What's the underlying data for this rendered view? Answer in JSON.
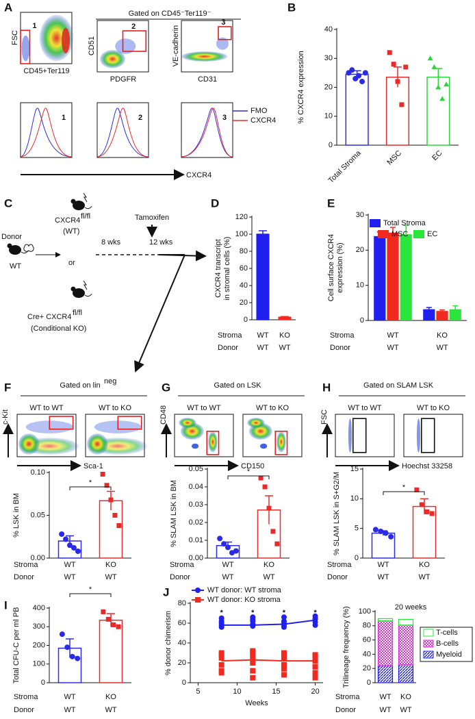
{
  "panel_a": {
    "letter": "A",
    "header": "Gated on CD45⁻Ter119⁻",
    "plots": [
      {
        "x_label": "CD45+Ter119",
        "y_label": "FSC",
        "gate": "1"
      },
      {
        "x_label": "PDGFR",
        "y_label": "CD51",
        "gate": "2"
      },
      {
        "x_label": "CD31",
        "y_label": "VE-cadherin",
        "gate": "3"
      }
    ],
    "histograms": [
      "1",
      "2",
      "3"
    ],
    "legend": [
      {
        "name": "FMO",
        "color": "#2b2be6"
      },
      {
        "name": "CXCR4",
        "color": "#e62b2b"
      }
    ],
    "x_arrow_label": "CXCR4"
  },
  "panel_c": {
    "letter": "C",
    "donor": "Donor",
    "donor_genotype": "WT",
    "wt_mouse": "CXCR4",
    "wt_sup": "fl/fl",
    "wt_note": "(WT)",
    "or": "or",
    "ko_mouse": "Cre+ CXCR4",
    "ko_sup": "fl/fl",
    "ko_note": "(Conditional KO)",
    "treatment": "Tamoxifen",
    "time1": "8 wks",
    "time2": "12 wks"
  },
  "flow_panels": [
    {
      "letter": "F",
      "header": "Gated on lin",
      "header_sup": "neg",
      "plots": [
        "WT to WT",
        "WT to KO"
      ],
      "x_label": "Sca-1",
      "y_label": "c-Kit"
    },
    {
      "letter": "G",
      "header": "Gated on LSK",
      "plots": [
        "WT to WT",
        "WT to KO"
      ],
      "x_label": "CD150",
      "y_label": "CD48"
    },
    {
      "letter": "H",
      "header": "Gated on SLAM LSK",
      "plots": [
        "WT to WT",
        "WT to KO"
      ],
      "x_label": "Hoechst 33258",
      "y_label": "FSC"
    }
  ],
  "chart_data": [
    {
      "type": "bar",
      "panel": "B",
      "ylabel": [
        "% CXCR4 expression"
      ],
      "categories": [
        "Total Stroma",
        "MSC",
        "EC"
      ],
      "values": [
        24.5,
        23.5,
        23.5
      ],
      "errors": [
        1.2,
        3.5,
        3.0
      ],
      "colors": [
        "#2b2be6",
        "#e62b2b",
        "#2bd63a"
      ],
      "filled": false,
      "points": [
        [
          25,
          26,
          23,
          24,
          22,
          25
        ],
        [
          32,
          28,
          22,
          14,
          27
        ],
        [
          30,
          27,
          20,
          16,
          21
        ]
      ],
      "ylim": [
        0,
        40
      ],
      "yticks": [
        0,
        10,
        20,
        30,
        40
      ]
    },
    {
      "type": "bar",
      "panel": "D",
      "ylabel": [
        "CXCR4 transcript",
        "in stromal cells (%)"
      ],
      "values": [
        100,
        3
      ],
      "errors": [
        4,
        0.8
      ],
      "colors": [
        "#1f1ff0",
        "#f02a1f"
      ],
      "filled": true,
      "rows": [
        {
          "label": "Stroma",
          "values": [
            "WT",
            "KO"
          ]
        },
        {
          "label": "Donor",
          "values": [
            "WT",
            "WT"
          ]
        }
      ],
      "ylim": [
        0,
        120
      ],
      "yticks": [
        0,
        20,
        40,
        60,
        80,
        100,
        120
      ]
    },
    {
      "type": "grouped-bar",
      "panel": "E",
      "ylabel": [
        "Cell surface CXCR4",
        "expression (%)"
      ],
      "series": [
        {
          "name": "Total Stroma",
          "color": "#1f1ff0",
          "values": [
            24,
            3.2
          ],
          "errors": [
            1.2,
            0.5
          ]
        },
        {
          "name": "MSC",
          "color": "#f02a1f",
          "values": [
            25,
            2.7
          ],
          "errors": [
            1.5,
            0.3
          ]
        },
        {
          "name": "EC",
          "color": "#2be63a",
          "values": [
            24.5,
            3.2
          ],
          "errors": [
            2.5,
            1.0
          ]
        }
      ],
      "rows": [
        {
          "label": "Stroma",
          "values": [
            "WT",
            "KO"
          ]
        },
        {
          "label": "Donor",
          "values": [
            "WT",
            "WT"
          ]
        }
      ],
      "ylim": [
        0,
        30
      ],
      "yticks": [
        0,
        10,
        20,
        30
      ]
    },
    {
      "type": "bar",
      "ylabel": [
        "% LSK in BM"
      ],
      "values": [
        0.02,
        0.067
      ],
      "errors": [
        0.006,
        0.011
      ],
      "colors": [
        "#2b2be6",
        "#e62b2b"
      ],
      "filled": false,
      "significance": "*",
      "points": [
        [
          0.028,
          0.022,
          0.015,
          0.012,
          0.008
        ],
        [
          0.098,
          0.085,
          0.068,
          0.05,
          0.038
        ]
      ],
      "rows": [
        {
          "label": "Stroma",
          "values": [
            "WT",
            "KO"
          ]
        },
        {
          "label": "Donor",
          "values": [
            "WT",
            "WT"
          ]
        }
      ],
      "ylim": [
        0,
        0.1
      ],
      "yticks": [
        {
          "value": 0,
          "label": "0.00"
        },
        {
          "value": 0.05,
          "label": "0.05"
        },
        {
          "value": 0.1,
          "label": "0.10"
        }
      ]
    },
    {
      "type": "bar",
      "ylabel": [
        "% SLAM LSK in BM"
      ],
      "values": [
        0.007,
        0.027
      ],
      "errors": [
        0.002,
        0.008
      ],
      "colors": [
        "#2b2be6",
        "#e62b2b"
      ],
      "filled": false,
      "significance": "*",
      "points": [
        [
          0.011,
          0.008,
          0.006,
          0.003,
          0.004
        ],
        [
          0.045,
          0.04,
          0.028,
          0.015,
          0.008
        ]
      ],
      "rows": [
        {
          "label": "Stroma",
          "values": [
            "WT",
            "KO"
          ]
        },
        {
          "label": "Donor",
          "values": [
            "WT",
            "WT"
          ]
        }
      ],
      "ylim": [
        0,
        0.05
      ],
      "yticks": [
        {
          "value": 0,
          "label": "0.00"
        },
        {
          "value": 0.01,
          "label": "0.01"
        },
        {
          "value": 0.02,
          "label": "0.02"
        },
        {
          "value": 0.03,
          "label": "0.03"
        },
        {
          "value": 0.04,
          "label": "0.04"
        },
        {
          "value": 0.05,
          "label": "0.05"
        }
      ]
    },
    {
      "type": "bar",
      "ylabel": [
        "% SLAM LSK in S+G2/M"
      ],
      "values": [
        4.2,
        8.7
      ],
      "errors": [
        0.4,
        1.3
      ],
      "colors": [
        "#2b2be6",
        "#e62b2b"
      ],
      "filled": false,
      "significance": "*",
      "points": [
        [
          4.8,
          4.5,
          4.2,
          3.6
        ],
        [
          11.5,
          9,
          7.8,
          7.5
        ]
      ],
      "rows": [
        {
          "label": "Stroma",
          "values": [
            "WT",
            "KO"
          ]
        },
        {
          "label": "Donor",
          "values": [
            "WT",
            "WT"
          ]
        }
      ],
      "ylim": [
        0,
        15
      ],
      "yticks": [
        0,
        5,
        10,
        15
      ]
    },
    {
      "type": "bar",
      "panel": "I",
      "ylabel": [
        "Total CFU-C per ml PB"
      ],
      "values": [
        185,
        335
      ],
      "errors": [
        50,
        35
      ],
      "colors": [
        "#2b2be6",
        "#e62b2b"
      ],
      "filled": false,
      "significance": "*",
      "points": [
        [
          260,
          190,
          140,
          130
        ],
        [
          380,
          340,
          310,
          300
        ]
      ],
      "rows": [
        {
          "label": "Stroma",
          "values": [
            "WT",
            "KO"
          ]
        },
        {
          "label": "Donor",
          "values": [
            "WT",
            "WT"
          ]
        }
      ],
      "ylim": [
        0,
        400
      ],
      "yticks": [
        0,
        100,
        200,
        300,
        400
      ]
    },
    {
      "type": "line",
      "panel": "J",
      "ylabel": [
        "% donor chimerism"
      ],
      "xlabel": "Weeks",
      "x": [
        8,
        12,
        16,
        20
      ],
      "series": [
        {
          "name": "WT donor: WT stroma",
          "color": "#1f1ff0",
          "marker": "circle",
          "values": [
            58,
            58,
            59,
            63
          ],
          "points": [
            [
              56,
              58,
              60,
              62,
              65
            ],
            [
              57,
              59,
              62,
              64,
              66
            ],
            [
              56,
              58,
              60,
              62,
              66
            ],
            [
              58,
              61,
              64,
              65,
              67
            ]
          ]
        },
        {
          "name": "WT donor: KO stroma",
          "color": "#f02a1f",
          "marker": "square",
          "values": [
            22,
            23,
            22,
            22
          ],
          "points": [
            [
              10,
              12,
              18,
              25,
              28,
              30
            ],
            [
              5,
              12,
              20,
              25,
              30,
              32
            ],
            [
              8,
              14,
              18,
              24,
              28,
              30
            ],
            [
              5,
              10,
              16,
              22,
              26,
              28
            ]
          ]
        }
      ],
      "significance": [
        "*",
        "*",
        "*",
        "*"
      ],
      "xlim": [
        4,
        21
      ],
      "xticks": [
        5,
        10,
        15,
        20
      ],
      "ylim": [
        0,
        80
      ],
      "yticks": [
        0,
        20,
        40,
        60,
        80
      ]
    },
    {
      "type": "stacked-bar",
      "title": "20 weeks",
      "ylabel": [
        "Trilineage frequency (%)"
      ],
      "series": [
        {
          "name": "Myeloid",
          "color": "#1f1ff0",
          "values": [
            24,
            25
          ]
        },
        {
          "name": "B-cells",
          "color": "#e02ae0",
          "values": [
            63,
            56
          ]
        },
        {
          "name": "T-cells",
          "color": "#2be63a",
          "values": [
            3,
            8
          ]
        }
      ],
      "rows": [
        {
          "label": "Stroma",
          "values": [
            "WT",
            "KO"
          ]
        },
        {
          "label": "Donor",
          "values": [
            "WT",
            "WT"
          ]
        }
      ],
      "ylim": [
        0,
        100
      ],
      "yticks": [
        0,
        20,
        40,
        60,
        80,
        100
      ]
    }
  ]
}
